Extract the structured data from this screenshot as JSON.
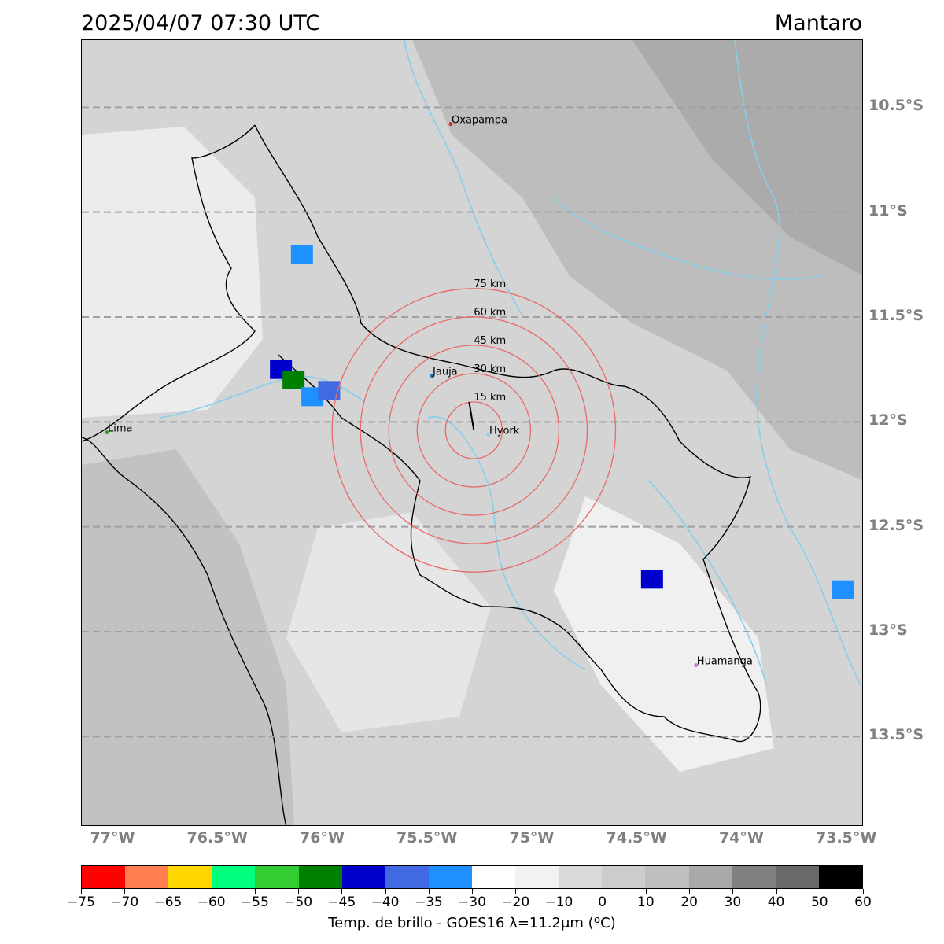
{
  "header": {
    "datetime": "2025/04/07 07:30 UTC",
    "region": "Mantaro"
  },
  "map": {
    "lon_range": [
      -77.15,
      -73.42
    ],
    "lat_range": [
      -13.93,
      -10.18
    ],
    "lat_gridlines": [
      -10.5,
      -11.0,
      -11.5,
      -12.0,
      -12.5,
      -13.0,
      -13.5
    ],
    "lat_labels": [
      "10.5°S",
      "11°S",
      "11.5°S",
      "12°S",
      "12.5°S",
      "13°S",
      "13.5°S"
    ],
    "lon_ticks": [
      -77.0,
      -76.5,
      -76.0,
      -75.5,
      -75.0,
      -74.5,
      -74.0,
      -73.5
    ],
    "lon_labels": [
      "77°W",
      "76.5°W",
      "76°W",
      "75.5°W",
      "75°W",
      "74.5°W",
      "74°W",
      "73.5°W"
    ],
    "center": {
      "name": "Hyork",
      "lon": -75.28,
      "lat": -12.04
    },
    "rings": [
      {
        "km": 15,
        "label": "15 km"
      },
      {
        "km": 30,
        "label": "30 km"
      },
      {
        "km": 45,
        "label": "45 km"
      },
      {
        "km": 60,
        "label": "60 km"
      },
      {
        "km": 75,
        "label": "75 km"
      }
    ],
    "cities": [
      {
        "name": "Oxapampa",
        "lon": -75.39,
        "lat": -10.58,
        "color": "#d62728"
      },
      {
        "name": "Jauja",
        "lon": -75.48,
        "lat": -11.78,
        "color": "#1f77b4"
      },
      {
        "name": "Hyork",
        "lon": -75.21,
        "lat": -12.06,
        "color": "#87ceeb"
      },
      {
        "name": "Lima",
        "lon": -77.03,
        "lat": -12.05,
        "color": "#2ca02c"
      },
      {
        "name": "Huamanga",
        "lon": -74.22,
        "lat": -13.16,
        "color": "#c07ec0"
      }
    ],
    "cold_cloud_cells": [
      {
        "lon": -76.2,
        "lat": -11.75,
        "temp_c": -42
      },
      {
        "lon": -76.14,
        "lat": -11.8,
        "temp_c": -48
      },
      {
        "lon": -76.05,
        "lat": -11.88,
        "temp_c": -35
      },
      {
        "lon": -75.97,
        "lat": -11.85,
        "temp_c": -40
      },
      {
        "lon": -76.1,
        "lat": -11.2,
        "temp_c": -33
      },
      {
        "lon": -74.43,
        "lat": -12.75,
        "temp_c": -42
      },
      {
        "lon": -73.52,
        "lat": -12.8,
        "temp_c": -32
      }
    ]
  },
  "colorbar": {
    "label": "Temp. de brillo - GOES16 λ=11.2μm (ºC)",
    "bounds": [
      -75,
      -70,
      -65,
      -60,
      -55,
      -50,
      -45,
      -40,
      -35,
      -30,
      -20,
      -10,
      0,
      10,
      20,
      30,
      40,
      50,
      60
    ],
    "tick_labels": [
      "−75",
      "−70",
      "−65",
      "−60",
      "−55",
      "−50",
      "−45",
      "−40",
      "−35",
      "−30",
      "−20",
      "−10",
      "0",
      "10",
      "20",
      "30",
      "40",
      "50",
      "60"
    ],
    "colors": [
      "#ff0000",
      "#ff7f50",
      "#ffd700",
      "#00ff7f",
      "#32cd32",
      "#008000",
      "#0000cd",
      "#4169e1",
      "#1e90ff",
      "#ffffff",
      "#f2f2f2",
      "#d9d9d9",
      "#cccccc",
      "#bebebe",
      "#a9a9a9",
      "#808080",
      "#696969",
      "#000000"
    ]
  }
}
